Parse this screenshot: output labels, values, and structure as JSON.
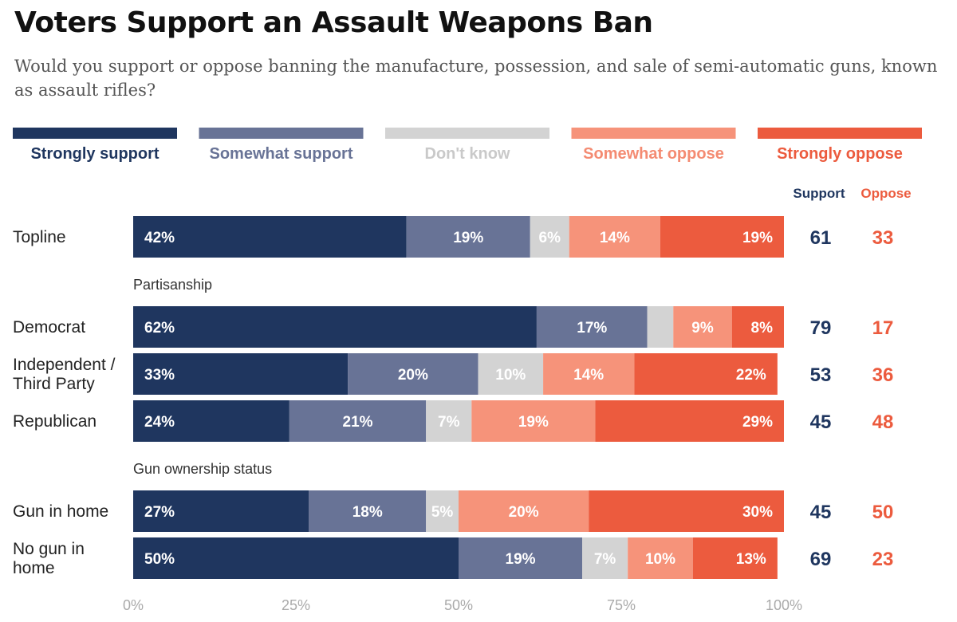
{
  "title": "Voters Support an Assault Weapons Ban",
  "subtitle": "Would you support or oppose banning the manufacture, possession, and sale of semi-automatic guns, known as assault rifles?",
  "colors": {
    "strongly_support": "#1f365f",
    "somewhat_support": "#687396",
    "dont_know": "#d3d3d3",
    "somewhat_oppose": "#f6937a",
    "strongly_oppose": "#ec5b3e",
    "support_total": "#1f365f",
    "oppose_total": "#ec5b3e"
  },
  "chart_data": {
    "type": "bar",
    "orientation": "horizontal",
    "stacked": true,
    "legend": [
      {
        "name": "Strongly support",
        "color": "#1f365f",
        "text_color": "#1f365f"
      },
      {
        "name": "Somewhat support",
        "color": "#687396",
        "text_color": "#687396"
      },
      {
        "name": "Don't know",
        "color": "#d3d3d3",
        "text_color": "#c9c9c9"
      },
      {
        "name": "Somewhat oppose",
        "color": "#f6937a",
        "text_color": "#f48b72"
      },
      {
        "name": "Strongly oppose",
        "color": "#ec5b3e",
        "text_color": "#ec5b3e"
      }
    ],
    "totals_headers": {
      "support": "Support",
      "oppose": "Oppose"
    },
    "groups": [
      {
        "label": "",
        "rows": [
          {
            "label": [
              "Topline"
            ],
            "values": [
              42,
              19,
              6,
              14,
              19
            ],
            "support": 61,
            "oppose": 33
          }
        ]
      },
      {
        "label": "Partisanship",
        "rows": [
          {
            "label": [
              "Democrat"
            ],
            "values": [
              62,
              17,
              4,
              9,
              8
            ],
            "support": 79,
            "oppose": 17
          },
          {
            "label": [
              "Independent /",
              "Third Party"
            ],
            "values": [
              33,
              20,
              10,
              14,
              22
            ],
            "support": 53,
            "oppose": 36
          },
          {
            "label": [
              "Republican"
            ],
            "values": [
              24,
              21,
              7,
              19,
              29
            ],
            "support": 45,
            "oppose": 48
          }
        ]
      },
      {
        "label": "Gun ownership status",
        "rows": [
          {
            "label": [
              "Gun in home"
            ],
            "values": [
              27,
              18,
              5,
              20,
              30
            ],
            "support": 45,
            "oppose": 50
          },
          {
            "label": [
              "No gun in",
              "home"
            ],
            "values": [
              50,
              19,
              7,
              10,
              13
            ],
            "support": 69,
            "oppose": 23
          }
        ]
      }
    ],
    "value_labels_hidden_below": 5,
    "x_ticks": [
      "0%",
      "25%",
      "50%",
      "75%",
      "100%"
    ],
    "xlim": [
      0,
      100
    ]
  }
}
